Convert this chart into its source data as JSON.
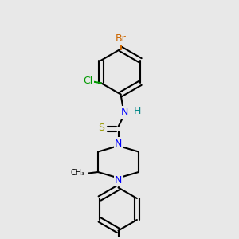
{
  "bg_color": "#e8e8e8",
  "bond_color": "#000000",
  "bond_width": 1.5,
  "atom_colors": {
    "Br": "#cc6600",
    "Cl": "#009900",
    "N": "#0000ff",
    "S": "#999900",
    "H": "#008888",
    "C": "#000000"
  },
  "font_size": 9,
  "fig_size": [
    3.0,
    3.0
  ],
  "dpi": 100
}
